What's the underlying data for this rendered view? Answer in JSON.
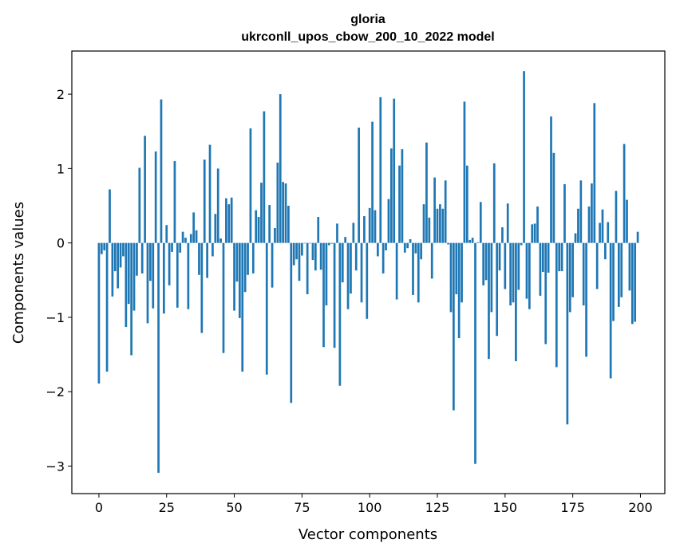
{
  "chart_data": {
    "type": "bar",
    "title": "gloria",
    "subtitle": "ukrconll_upos_cbow_200_10_2022 model",
    "xlabel": "Vector components",
    "ylabel": "Components values",
    "xlim": [
      -10,
      209
    ],
    "ylim": [
      -3.37,
      2.58
    ],
    "xticks": [
      0,
      25,
      50,
      75,
      100,
      125,
      150,
      175,
      200
    ],
    "yticks": [
      -3,
      -2,
      -1,
      0,
      1,
      2
    ],
    "xtick_labels": [
      "0",
      "25",
      "50",
      "75",
      "100",
      "125",
      "150",
      "175",
      "200"
    ],
    "ytick_labels": [
      "−3",
      "−2",
      "−1",
      "0",
      "1",
      "2"
    ],
    "bar_color": "#1f77b4",
    "grid": false,
    "legend": "none",
    "x": [
      0,
      1,
      2,
      3,
      4,
      5,
      6,
      7,
      8,
      9,
      10,
      11,
      12,
      13,
      14,
      15,
      16,
      17,
      18,
      19,
      20,
      21,
      22,
      23,
      24,
      25,
      26,
      27,
      28,
      29,
      30,
      31,
      32,
      33,
      34,
      35,
      36,
      37,
      38,
      39,
      40,
      41,
      42,
      43,
      44,
      45,
      46,
      47,
      48,
      49,
      50,
      51,
      52,
      53,
      54,
      55,
      56,
      57,
      58,
      59,
      60,
      61,
      62,
      63,
      64,
      65,
      66,
      67,
      68,
      69,
      70,
      71,
      72,
      73,
      74,
      75,
      76,
      77,
      78,
      79,
      80,
      81,
      82,
      83,
      84,
      85,
      86,
      87,
      88,
      89,
      90,
      91,
      92,
      93,
      94,
      95,
      96,
      97,
      98,
      99,
      100,
      101,
      102,
      103,
      104,
      105,
      106,
      107,
      108,
      109,
      110,
      111,
      112,
      113,
      114,
      115,
      116,
      117,
      118,
      119,
      120,
      121,
      122,
      123,
      124,
      125,
      126,
      127,
      128,
      129,
      130,
      131,
      132,
      133,
      134,
      135,
      136,
      137,
      138,
      139,
      140,
      141,
      142,
      143,
      144,
      145,
      146,
      147,
      148,
      149,
      150,
      151,
      152,
      153,
      154,
      155,
      156,
      157,
      158,
      159,
      160,
      161,
      162,
      163,
      164,
      165,
      166,
      167,
      168,
      169,
      170,
      171,
      172,
      173,
      174,
      175,
      176,
      177,
      178,
      179,
      180,
      181,
      182,
      183,
      184,
      185,
      186,
      187,
      188,
      189,
      190,
      191,
      192,
      193,
      194,
      195,
      196,
      197,
      198,
      199
    ],
    "values": [
      -1.89,
      -0.15,
      -0.1,
      -1.73,
      0.72,
      -0.72,
      -0.38,
      -0.61,
      -0.33,
      -0.18,
      -1.13,
      -0.82,
      -1.51,
      -0.91,
      -0.44,
      1.01,
      -0.41,
      1.44,
      -1.08,
      -0.51,
      -0.88,
      1.23,
      -3.09,
      1.93,
      -0.95,
      0.24,
      -0.57,
      -0.12,
      1.1,
      -0.87,
      -0.13,
      0.15,
      0.07,
      -0.89,
      0.12,
      0.41,
      0.17,
      -0.43,
      -1.21,
      1.12,
      -0.47,
      1.32,
      -0.18,
      0.39,
      1.0,
      0.06,
      -1.48,
      0.6,
      0.52,
      0.61,
      -0.91,
      -0.52,
      -1.01,
      -1.73,
      -0.66,
      -0.43,
      1.54,
      -0.41,
      0.44,
      0.35,
      0.81,
      1.77,
      -1.77,
      0.51,
      -0.6,
      0.2,
      1.08,
      2.0,
      0.82,
      0.8,
      0.5,
      -2.15,
      -0.3,
      -0.22,
      -0.51,
      -0.17,
      0.0,
      -0.69,
      0.0,
      -0.23,
      -0.37,
      0.35,
      -0.36,
      -1.4,
      -0.84,
      -0.03,
      -0.01,
      -1.41,
      0.26,
      -1.92,
      -0.53,
      0.08,
      -0.89,
      -0.68,
      0.27,
      -0.37,
      1.55,
      -0.8,
      0.36,
      -1.02,
      0.47,
      1.63,
      0.44,
      -0.18,
      1.96,
      -0.41,
      -0.1,
      0.59,
      1.27,
      1.94,
      -0.76,
      1.04,
      1.26,
      -0.13,
      -0.07,
      0.05,
      -0.7,
      -0.14,
      -0.8,
      -0.22,
      0.52,
      1.35,
      0.34,
      -0.48,
      0.88,
      0.46,
      0.52,
      0.46,
      0.84,
      -0.02,
      -0.93,
      -2.25,
      -0.69,
      -1.28,
      -0.8,
      1.9,
      1.04,
      0.04,
      0.07,
      -2.97,
      0.01,
      0.55,
      -0.57,
      -0.5,
      -1.56,
      -0.93,
      1.07,
      -1.25,
      -0.37,
      0.21,
      -0.62,
      0.53,
      -0.84,
      -0.8,
      -1.59,
      -0.63,
      -0.03,
      2.31,
      -0.75,
      -0.89,
      0.25,
      0.26,
      0.49,
      -0.71,
      -0.39,
      -1.36,
      -0.4,
      1.7,
      1.21,
      -1.67,
      -0.38,
      -0.38,
      0.79,
      -2.44,
      -0.93,
      -0.73,
      0.13,
      0.46,
      0.84,
      -0.84,
      -1.53,
      0.49,
      0.8,
      1.88,
      -0.62,
      0.27,
      0.45,
      -0.22,
      0.28,
      -1.82,
      -1.05,
      0.7,
      -0.86,
      -0.73,
      1.33,
      0.58,
      -0.64,
      -1.09,
      -1.06,
      0.15
    ]
  }
}
